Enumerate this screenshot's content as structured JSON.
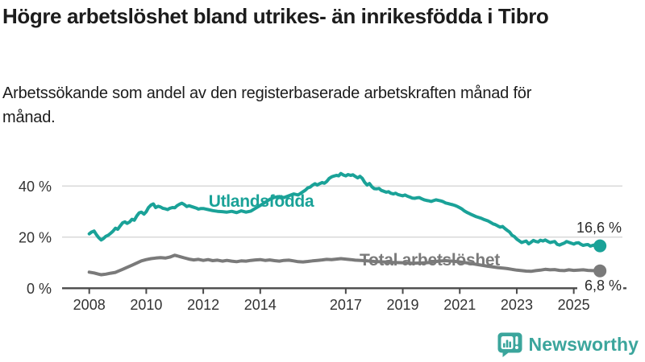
{
  "header": {
    "title": "Högre arbetslöshet bland utrikes- än inrikesfödda i Tibro",
    "subtitle": "Arbetssökande som andel av den registerbaserade arbetskraften månad för månad."
  },
  "footer": {
    "brand_name": "Newsworthy"
  },
  "colors": {
    "accent_teal": "#1aa298",
    "series_gray": "#7a7a7a",
    "axis": "#4a4a4a",
    "gridline": "#d9d9d9",
    "text_dark": "#2b2b2b",
    "logo_teal": "#3ba59c"
  },
  "chart_data": {
    "type": "line",
    "unit": "%",
    "x_ticks": [
      2008,
      2010,
      2012,
      2014,
      2017,
      2019,
      2021,
      2023,
      2025
    ],
    "x_tick_labels": [
      "2008",
      "2010",
      "2012",
      "2014",
      "2017",
      "2019",
      "2021",
      "2023",
      "2025"
    ],
    "y_ticks": [
      {
        "value": 0,
        "label": "0 %"
      },
      {
        "value": 20,
        "label": "20 %"
      },
      {
        "value": 40,
        "label": "40 %"
      }
    ],
    "x_range": [
      2008,
      2025.92
    ],
    "y_range": [
      0,
      47
    ],
    "grid": true,
    "legend_position": "inline-labels",
    "series": [
      {
        "name": "Total arbetslöshet",
        "color": "#7a7a7a",
        "end_value": 6.8,
        "end_label": "6,8 %",
        "points": [
          [
            2008.0,
            6.3
          ],
          [
            2008.17,
            6.0
          ],
          [
            2008.33,
            5.5
          ],
          [
            2008.42,
            5.3
          ],
          [
            2008.58,
            5.5
          ],
          [
            2008.75,
            5.9
          ],
          [
            2008.92,
            6.2
          ],
          [
            2009.0,
            6.6
          ],
          [
            2009.17,
            7.4
          ],
          [
            2009.33,
            8.2
          ],
          [
            2009.5,
            9.0
          ],
          [
            2009.67,
            9.9
          ],
          [
            2009.83,
            10.7
          ],
          [
            2010.0,
            11.2
          ],
          [
            2010.17,
            11.6
          ],
          [
            2010.33,
            11.8
          ],
          [
            2010.5,
            12.0
          ],
          [
            2010.67,
            11.8
          ],
          [
            2010.83,
            12.2
          ],
          [
            2011.0,
            12.9
          ],
          [
            2011.08,
            12.7
          ],
          [
            2011.17,
            12.4
          ],
          [
            2011.33,
            11.9
          ],
          [
            2011.5,
            11.4
          ],
          [
            2011.67,
            11.1
          ],
          [
            2011.83,
            11.3
          ],
          [
            2012.0,
            10.9
          ],
          [
            2012.17,
            11.2
          ],
          [
            2012.33,
            10.8
          ],
          [
            2012.5,
            11.0
          ],
          [
            2012.67,
            10.6
          ],
          [
            2012.83,
            10.9
          ],
          [
            2013.0,
            10.6
          ],
          [
            2013.17,
            10.4
          ],
          [
            2013.33,
            10.7
          ],
          [
            2013.5,
            10.6
          ],
          [
            2013.67,
            10.9
          ],
          [
            2013.83,
            11.1
          ],
          [
            2014.0,
            11.2
          ],
          [
            2014.17,
            10.9
          ],
          [
            2014.33,
            11.1
          ],
          [
            2014.5,
            10.8
          ],
          [
            2014.67,
            10.6
          ],
          [
            2014.83,
            10.9
          ],
          [
            2015.0,
            11.0
          ],
          [
            2015.17,
            10.7
          ],
          [
            2015.33,
            10.4
          ],
          [
            2015.5,
            10.3
          ],
          [
            2015.67,
            10.5
          ],
          [
            2015.83,
            10.7
          ],
          [
            2016.0,
            10.9
          ],
          [
            2016.17,
            11.1
          ],
          [
            2016.33,
            11.3
          ],
          [
            2016.5,
            11.2
          ],
          [
            2016.67,
            11.4
          ],
          [
            2016.83,
            11.6
          ],
          [
            2017.0,
            11.4
          ],
          [
            2017.17,
            11.2
          ],
          [
            2017.33,
            11.0
          ],
          [
            2017.67,
            10.8
          ],
          [
            2018.0,
            10.5
          ],
          [
            2018.33,
            10.3
          ],
          [
            2018.67,
            10.1
          ],
          [
            2019.0,
            10.0
          ],
          [
            2019.33,
            9.8
          ],
          [
            2019.67,
            9.9
          ],
          [
            2020.0,
            10.1
          ],
          [
            2020.25,
            10.6
          ],
          [
            2020.5,
            10.8
          ],
          [
            2020.75,
            10.6
          ],
          [
            2021.0,
            10.3
          ],
          [
            2021.33,
            9.8
          ],
          [
            2021.67,
            9.2
          ],
          [
            2022.0,
            8.6
          ],
          [
            2022.33,
            8.1
          ],
          [
            2022.58,
            7.8
          ],
          [
            2022.67,
            7.7
          ],
          [
            2022.83,
            7.4
          ],
          [
            2023.0,
            7.1
          ],
          [
            2023.17,
            6.9
          ],
          [
            2023.33,
            6.7
          ],
          [
            2023.5,
            6.6
          ],
          [
            2023.67,
            6.9
          ],
          [
            2023.83,
            7.1
          ],
          [
            2024.0,
            7.4
          ],
          [
            2024.17,
            7.2
          ],
          [
            2024.33,
            7.3
          ],
          [
            2024.5,
            7.0
          ],
          [
            2024.67,
            6.9
          ],
          [
            2024.83,
            7.2
          ],
          [
            2025.0,
            7.0
          ],
          [
            2025.17,
            7.1
          ],
          [
            2025.33,
            7.2
          ],
          [
            2025.5,
            7.0
          ],
          [
            2025.67,
            6.9
          ],
          [
            2025.83,
            7.0
          ],
          [
            2025.92,
            6.8
          ]
        ]
      },
      {
        "name": "Utlandsfödda",
        "color": "#1aa298",
        "end_value": 16.6,
        "end_label": "16,6 %",
        "points": [
          [
            2008.0,
            21.3
          ],
          [
            2008.08,
            22.0
          ],
          [
            2008.17,
            22.4
          ],
          [
            2008.25,
            21.0
          ],
          [
            2008.33,
            19.8
          ],
          [
            2008.42,
            18.9
          ],
          [
            2008.5,
            19.5
          ],
          [
            2008.58,
            20.3
          ],
          [
            2008.67,
            20.8
          ],
          [
            2008.75,
            21.5
          ],
          [
            2008.83,
            22.3
          ],
          [
            2008.92,
            23.5
          ],
          [
            2009.0,
            23.1
          ],
          [
            2009.08,
            24.3
          ],
          [
            2009.17,
            25.6
          ],
          [
            2009.25,
            26.0
          ],
          [
            2009.33,
            25.4
          ],
          [
            2009.42,
            26.0
          ],
          [
            2009.5,
            27.0
          ],
          [
            2009.58,
            26.6
          ],
          [
            2009.67,
            28.3
          ],
          [
            2009.75,
            29.5
          ],
          [
            2009.83,
            29.8
          ],
          [
            2009.92,
            29.0
          ],
          [
            2010.0,
            30.0
          ],
          [
            2010.08,
            31.6
          ],
          [
            2010.17,
            32.6
          ],
          [
            2010.25,
            33.0
          ],
          [
            2010.33,
            31.6
          ],
          [
            2010.42,
            32.1
          ],
          [
            2010.5,
            31.8
          ],
          [
            2010.58,
            31.3
          ],
          [
            2010.67,
            31.1
          ],
          [
            2010.75,
            30.8
          ],
          [
            2010.83,
            31.3
          ],
          [
            2010.92,
            31.6
          ],
          [
            2011.0,
            31.5
          ],
          [
            2011.08,
            32.3
          ],
          [
            2011.17,
            32.9
          ],
          [
            2011.25,
            33.3
          ],
          [
            2011.33,
            32.8
          ],
          [
            2011.42,
            32.0
          ],
          [
            2011.5,
            32.3
          ],
          [
            2011.58,
            32.0
          ],
          [
            2011.67,
            31.7
          ],
          [
            2011.75,
            31.4
          ],
          [
            2011.83,
            31.0
          ],
          [
            2011.92,
            31.2
          ],
          [
            2012.0,
            31.2
          ],
          [
            2012.17,
            30.8
          ],
          [
            2012.33,
            30.4
          ],
          [
            2012.5,
            30.1
          ],
          [
            2012.67,
            30.0
          ],
          [
            2012.83,
            29.8
          ],
          [
            2013.0,
            30.1
          ],
          [
            2013.17,
            29.6
          ],
          [
            2013.33,
            30.3
          ],
          [
            2013.5,
            29.8
          ],
          [
            2013.67,
            30.2
          ],
          [
            2013.83,
            31.3
          ],
          [
            2014.0,
            32.4
          ],
          [
            2014.17,
            33.6
          ],
          [
            2014.33,
            34.8
          ],
          [
            2014.5,
            35.6
          ],
          [
            2014.67,
            35.9
          ],
          [
            2014.83,
            35.5
          ],
          [
            2015.0,
            36.2
          ],
          [
            2015.17,
            36.9
          ],
          [
            2015.33,
            36.5
          ],
          [
            2015.5,
            37.8
          ],
          [
            2015.58,
            38.4
          ],
          [
            2015.67,
            39.3
          ],
          [
            2015.75,
            39.6
          ],
          [
            2015.83,
            40.3
          ],
          [
            2015.92,
            40.9
          ],
          [
            2016.0,
            40.4
          ],
          [
            2016.08,
            40.9
          ],
          [
            2016.17,
            41.4
          ],
          [
            2016.25,
            41.1
          ],
          [
            2016.33,
            41.8
          ],
          [
            2016.42,
            43.0
          ],
          [
            2016.5,
            43.6
          ],
          [
            2016.58,
            43.9
          ],
          [
            2016.67,
            44.2
          ],
          [
            2016.75,
            44.0
          ],
          [
            2016.83,
            44.9
          ],
          [
            2016.92,
            44.3
          ],
          [
            2017.0,
            44.0
          ],
          [
            2017.08,
            44.5
          ],
          [
            2017.17,
            44.2
          ],
          [
            2017.25,
            44.4
          ],
          [
            2017.33,
            43.8
          ],
          [
            2017.42,
            43.2
          ],
          [
            2017.5,
            43.8
          ],
          [
            2017.58,
            43.0
          ],
          [
            2017.67,
            41.4
          ],
          [
            2017.75,
            40.4
          ],
          [
            2017.83,
            41.0
          ],
          [
            2017.92,
            39.7
          ],
          [
            2018.0,
            39.0
          ],
          [
            2018.08,
            38.9
          ],
          [
            2018.17,
            39.1
          ],
          [
            2018.25,
            38.3
          ],
          [
            2018.33,
            38.0
          ],
          [
            2018.42,
            37.6
          ],
          [
            2018.5,
            37.8
          ],
          [
            2018.58,
            37.2
          ],
          [
            2018.67,
            36.9
          ],
          [
            2018.75,
            37.2
          ],
          [
            2018.83,
            36.7
          ],
          [
            2018.92,
            36.4
          ],
          [
            2019.0,
            36.2
          ],
          [
            2019.08,
            36.5
          ],
          [
            2019.17,
            36.0
          ],
          [
            2019.25,
            35.7
          ],
          [
            2019.33,
            35.3
          ],
          [
            2019.42,
            35.2
          ],
          [
            2019.5,
            35.4
          ],
          [
            2019.58,
            35.5
          ],
          [
            2019.67,
            35.0
          ],
          [
            2019.75,
            34.6
          ],
          [
            2019.83,
            34.4
          ],
          [
            2019.92,
            34.2
          ],
          [
            2020.0,
            34.0
          ],
          [
            2020.08,
            34.3
          ],
          [
            2020.17,
            34.6
          ],
          [
            2020.25,
            34.4
          ],
          [
            2020.33,
            34.2
          ],
          [
            2020.42,
            33.9
          ],
          [
            2020.5,
            33.4
          ],
          [
            2020.58,
            33.2
          ],
          [
            2020.67,
            32.9
          ],
          [
            2020.75,
            32.7
          ],
          [
            2020.83,
            32.4
          ],
          [
            2020.92,
            32.0
          ],
          [
            2021.0,
            31.5
          ],
          [
            2021.08,
            31.0
          ],
          [
            2021.17,
            30.2
          ],
          [
            2021.25,
            29.7
          ],
          [
            2021.33,
            29.3
          ],
          [
            2021.42,
            28.8
          ],
          [
            2021.5,
            28.4
          ],
          [
            2021.58,
            28.0
          ],
          [
            2021.67,
            27.7
          ],
          [
            2021.75,
            27.4
          ],
          [
            2021.83,
            27.0
          ],
          [
            2021.92,
            26.6
          ],
          [
            2022.0,
            26.3
          ],
          [
            2022.08,
            25.8
          ],
          [
            2022.17,
            25.2
          ],
          [
            2022.25,
            24.9
          ],
          [
            2022.33,
            24.4
          ],
          [
            2022.42,
            23.9
          ],
          [
            2022.5,
            24.2
          ],
          [
            2022.58,
            23.4
          ],
          [
            2022.67,
            22.6
          ],
          [
            2022.75,
            22.0
          ],
          [
            2022.83,
            20.8
          ],
          [
            2022.92,
            20.2
          ],
          [
            2023.0,
            19.2
          ],
          [
            2023.08,
            18.6
          ],
          [
            2023.17,
            17.9
          ],
          [
            2023.25,
            18.2
          ],
          [
            2023.33,
            18.5
          ],
          [
            2023.42,
            17.4
          ],
          [
            2023.5,
            18.0
          ],
          [
            2023.58,
            18.7
          ],
          [
            2023.67,
            18.3
          ],
          [
            2023.75,
            18.1
          ],
          [
            2023.83,
            18.8
          ],
          [
            2023.92,
            18.5
          ],
          [
            2024.0,
            18.9
          ],
          [
            2024.08,
            18.4
          ],
          [
            2024.17,
            17.9
          ],
          [
            2024.25,
            18.1
          ],
          [
            2024.33,
            18.3
          ],
          [
            2024.42,
            17.2
          ],
          [
            2024.5,
            16.9
          ],
          [
            2024.58,
            17.3
          ],
          [
            2024.67,
            17.7
          ],
          [
            2024.75,
            18.3
          ],
          [
            2024.83,
            18.0
          ],
          [
            2024.92,
            17.6
          ],
          [
            2025.0,
            17.3
          ],
          [
            2025.08,
            17.7
          ],
          [
            2025.17,
            17.8
          ],
          [
            2025.25,
            17.2
          ],
          [
            2025.33,
            16.8
          ],
          [
            2025.42,
            17.0
          ],
          [
            2025.5,
            17.1
          ],
          [
            2025.58,
            16.5
          ],
          [
            2025.67,
            16.8
          ],
          [
            2025.75,
            17.0
          ],
          [
            2025.83,
            16.7
          ],
          [
            2025.92,
            16.6
          ]
        ]
      }
    ]
  }
}
